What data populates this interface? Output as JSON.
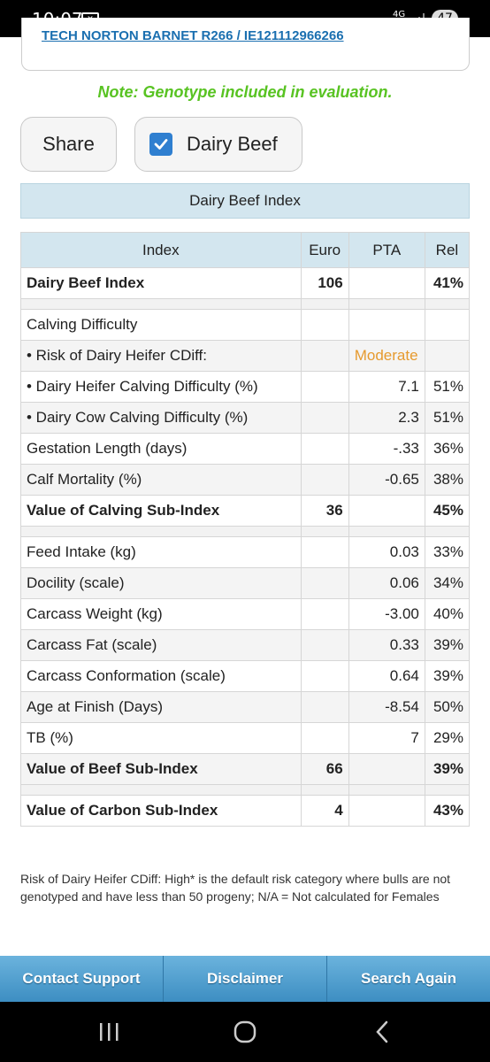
{
  "status_bar": {
    "time": "10:07",
    "network": "4G",
    "battery": "47"
  },
  "top_link": "TECH NORTON BARNET R266 / IE121112966266",
  "note": "Note: Genotype included in evaluation.",
  "actions": {
    "share_label": "Share",
    "dairy_beef_label": "Dairy Beef",
    "dairy_beef_checked": true
  },
  "section_title": "Dairy Beef Index",
  "table": {
    "headers": [
      "Index",
      "Euro",
      "PTA",
      "Rel"
    ],
    "rows": [
      {
        "label": "Dairy Beef Index",
        "euro": "106",
        "pta": "",
        "rel": "41%"
      },
      {
        "label": "Calving Difficulty",
        "euro": "",
        "pta": "",
        "rel": ""
      },
      {
        "label": "• Risk of Dairy Heifer CDiff:",
        "euro": "",
        "pta": "Moderate",
        "rel": ""
      },
      {
        "label": "• Dairy Heifer Calving Difficulty (%)",
        "euro": "",
        "pta": "7.1",
        "rel": "51%"
      },
      {
        "label": "• Dairy Cow Calving Difficulty (%)",
        "euro": "",
        "pta": "2.3",
        "rel": "51%"
      },
      {
        "label": "Gestation Length (days)",
        "euro": "",
        "pta": "-.33",
        "rel": "36%"
      },
      {
        "label": "Calf Mortality (%)",
        "euro": "",
        "pta": "-0.65",
        "rel": "38%"
      },
      {
        "label": "Value of Calving Sub-Index",
        "euro": "36",
        "pta": "",
        "rel": "45%"
      },
      {
        "label": "Feed Intake (kg)",
        "euro": "",
        "pta": "0.03",
        "rel": "33%"
      },
      {
        "label": "Docility (scale)",
        "euro": "",
        "pta": "0.06",
        "rel": "34%"
      },
      {
        "label": "Carcass Weight (kg)",
        "euro": "",
        "pta": "-3.00",
        "rel": "40%"
      },
      {
        "label": "Carcass Fat (scale)",
        "euro": "",
        "pta": "0.33",
        "rel": "39%"
      },
      {
        "label": "Carcass Conformation (scale)",
        "euro": "",
        "pta": "0.64",
        "rel": "39%"
      },
      {
        "label": "Age at Finish (Days)",
        "euro": "",
        "pta": "-8.54",
        "rel": "50%"
      },
      {
        "label": "TB (%)",
        "euro": "",
        "pta": "7",
        "rel": "29%"
      },
      {
        "label": "Value of Beef Sub-Index",
        "euro": "66",
        "pta": "",
        "rel": "39%"
      },
      {
        "label": "Value of Carbon Sub-Index",
        "euro": "4",
        "pta": "",
        "rel": "43%"
      }
    ]
  },
  "footnote": "Risk of Dairy Heifer CDiff: High* is the default risk category where bulls are not genotyped and have less than 50 progeny; N/A = Not calculated for Females",
  "bottom_nav": {
    "contact": "Contact Support",
    "disclaimer": "Disclaimer",
    "search_again": "Search Again"
  },
  "colors": {
    "note_green": "#58c322",
    "link_blue": "#1a6fb0",
    "header_blue": "#d3e6ef",
    "moderate_orange": "#e69a2e",
    "checkbox_blue": "#2f7fd0"
  }
}
